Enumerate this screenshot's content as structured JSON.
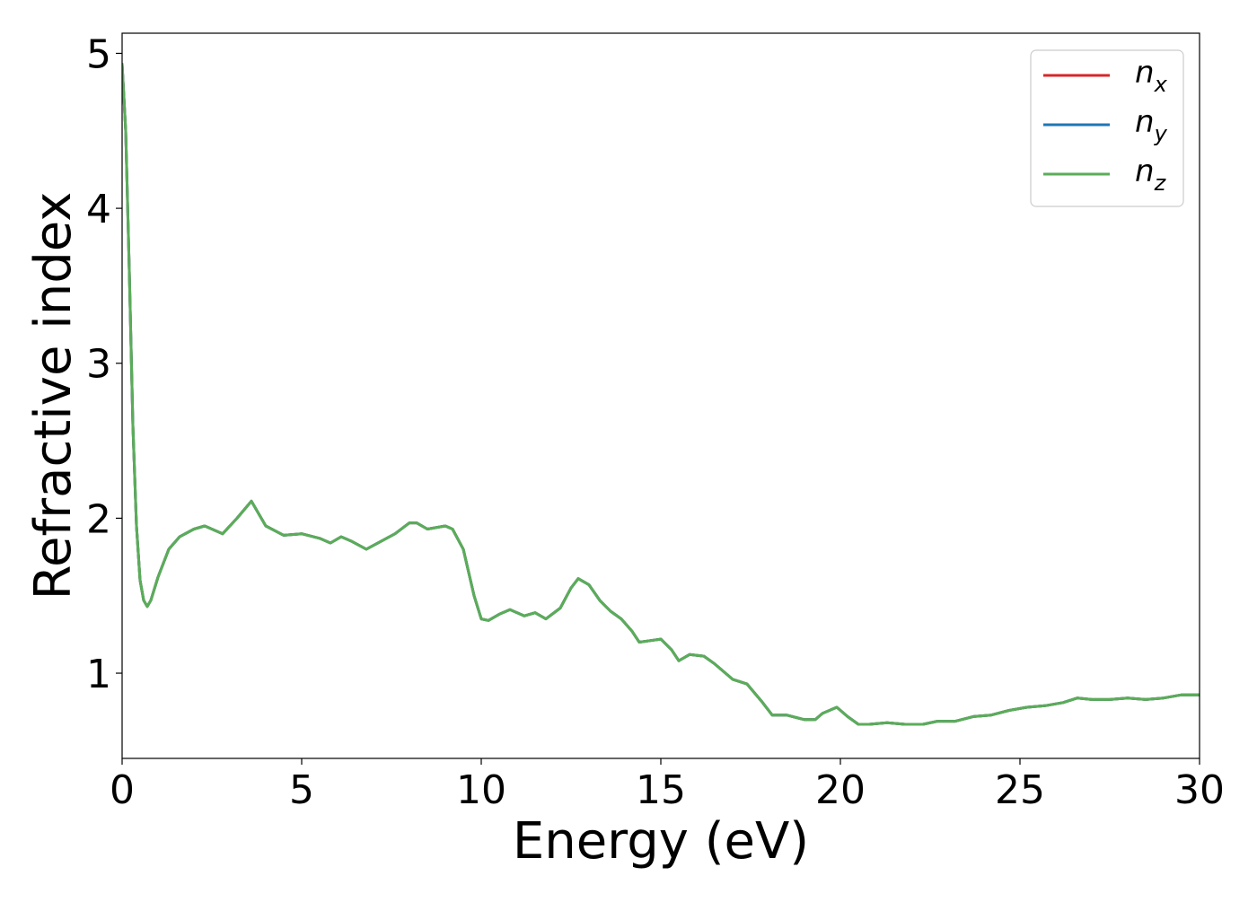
{
  "chart_data": {
    "type": "line",
    "title": "",
    "xlabel": "Energy (eV)",
    "ylabel": "Refractive index",
    "xlim": [
      0,
      30
    ],
    "ylim": [
      0.45,
      5.13
    ],
    "xticks": [
      0,
      5,
      10,
      15,
      20,
      25,
      30
    ],
    "yticks": [
      1,
      2,
      3,
      4,
      5
    ],
    "grid": false,
    "legend_position": "top-right",
    "series": [
      {
        "name": "n_x",
        "legend_main": "n",
        "legend_sub": "x",
        "color": "#d62728",
        "x": [
          0,
          0.1,
          0.2,
          0.3,
          0.4,
          0.5,
          0.6,
          0.7,
          0.8,
          1.0,
          1.3,
          1.6,
          2.0,
          2.3,
          2.6,
          2.8,
          3.2,
          3.6,
          4.0,
          4.5,
          5.0,
          5.5,
          5.8,
          6.1,
          6.4,
          6.8,
          7.2,
          7.6,
          8.0,
          8.2,
          8.5,
          9.0,
          9.2,
          9.5,
          9.8,
          10.0,
          10.2,
          10.5,
          10.8,
          11.2,
          11.5,
          11.8,
          12.2,
          12.5,
          12.7,
          13.0,
          13.3,
          13.6,
          13.9,
          14.2,
          14.4,
          14.7,
          15.0,
          15.3,
          15.5,
          15.8,
          16.2,
          16.5,
          17.0,
          17.4,
          17.8,
          18.1,
          18.5,
          19.0,
          19.3,
          19.5,
          19.9,
          20.2,
          20.5,
          20.8,
          21.3,
          21.8,
          22.3,
          22.7,
          23.2,
          23.7,
          24.2,
          24.7,
          25.2,
          25.7,
          26.2,
          26.6,
          27.0,
          27.5,
          28.0,
          28.5,
          29.0,
          29.5,
          30.0
        ],
        "y": [
          4.93,
          4.5,
          3.6,
          2.6,
          1.95,
          1.6,
          1.47,
          1.43,
          1.47,
          1.62,
          1.8,
          1.88,
          1.93,
          1.95,
          1.92,
          1.9,
          2.0,
          2.11,
          1.95,
          1.89,
          1.9,
          1.87,
          1.84,
          1.88,
          1.85,
          1.8,
          1.85,
          1.9,
          1.97,
          1.97,
          1.93,
          1.95,
          1.93,
          1.8,
          1.5,
          1.35,
          1.34,
          1.38,
          1.41,
          1.37,
          1.39,
          1.35,
          1.42,
          1.55,
          1.61,
          1.57,
          1.47,
          1.4,
          1.35,
          1.27,
          1.2,
          1.21,
          1.22,
          1.15,
          1.08,
          1.12,
          1.11,
          1.06,
          0.96,
          0.93,
          0.82,
          0.73,
          0.73,
          0.7,
          0.7,
          0.74,
          0.78,
          0.72,
          0.67,
          0.67,
          0.68,
          0.67,
          0.67,
          0.69,
          0.69,
          0.72,
          0.73,
          0.76,
          0.78,
          0.79,
          0.81,
          0.84,
          0.83,
          0.83,
          0.84,
          0.83,
          0.84,
          0.86,
          0.86
        ]
      },
      {
        "name": "n_y",
        "legend_main": "n",
        "legend_sub": "y",
        "color": "#1f77b4",
        "x": [
          0,
          0.1,
          0.2,
          0.3,
          0.4,
          0.5,
          0.6,
          0.7,
          0.8,
          1.0,
          1.3,
          1.6,
          2.0,
          2.3,
          2.6,
          2.8,
          3.2,
          3.6,
          4.0,
          4.5,
          5.0,
          5.5,
          5.8,
          6.1,
          6.4,
          6.8,
          7.2,
          7.6,
          8.0,
          8.2,
          8.5,
          9.0,
          9.2,
          9.5,
          9.8,
          10.0,
          10.2,
          10.5,
          10.8,
          11.2,
          11.5,
          11.8,
          12.2,
          12.5,
          12.7,
          13.0,
          13.3,
          13.6,
          13.9,
          14.2,
          14.4,
          14.7,
          15.0,
          15.3,
          15.5,
          15.8,
          16.2,
          16.5,
          17.0,
          17.4,
          17.8,
          18.1,
          18.5,
          19.0,
          19.3,
          19.5,
          19.9,
          20.2,
          20.5,
          20.8,
          21.3,
          21.8,
          22.3,
          22.7,
          23.2,
          23.7,
          24.2,
          24.7,
          25.2,
          25.7,
          26.2,
          26.6,
          27.0,
          27.5,
          28.0,
          28.5,
          29.0,
          29.5,
          30.0
        ],
        "y": [
          4.93,
          4.5,
          3.6,
          2.6,
          1.95,
          1.6,
          1.47,
          1.43,
          1.47,
          1.62,
          1.8,
          1.88,
          1.93,
          1.95,
          1.92,
          1.9,
          2.0,
          2.11,
          1.95,
          1.89,
          1.9,
          1.87,
          1.84,
          1.88,
          1.85,
          1.8,
          1.85,
          1.9,
          1.97,
          1.97,
          1.93,
          1.95,
          1.93,
          1.8,
          1.5,
          1.35,
          1.34,
          1.38,
          1.41,
          1.37,
          1.39,
          1.35,
          1.42,
          1.55,
          1.61,
          1.57,
          1.47,
          1.4,
          1.35,
          1.27,
          1.2,
          1.21,
          1.22,
          1.15,
          1.08,
          1.12,
          1.11,
          1.06,
          0.96,
          0.93,
          0.82,
          0.73,
          0.73,
          0.7,
          0.7,
          0.74,
          0.78,
          0.72,
          0.67,
          0.67,
          0.68,
          0.67,
          0.67,
          0.69,
          0.69,
          0.72,
          0.73,
          0.76,
          0.78,
          0.79,
          0.81,
          0.84,
          0.83,
          0.83,
          0.84,
          0.83,
          0.84,
          0.86,
          0.86
        ]
      },
      {
        "name": "n_z",
        "legend_main": "n",
        "legend_sub": "z",
        "color": "#5aad58",
        "x": [
          0,
          0.1,
          0.2,
          0.3,
          0.4,
          0.5,
          0.6,
          0.7,
          0.8,
          1.0,
          1.3,
          1.6,
          2.0,
          2.3,
          2.6,
          2.8,
          3.2,
          3.6,
          4.0,
          4.5,
          5.0,
          5.5,
          5.8,
          6.1,
          6.4,
          6.8,
          7.2,
          7.6,
          8.0,
          8.2,
          8.5,
          9.0,
          9.2,
          9.5,
          9.8,
          10.0,
          10.2,
          10.5,
          10.8,
          11.2,
          11.5,
          11.8,
          12.2,
          12.5,
          12.7,
          13.0,
          13.3,
          13.6,
          13.9,
          14.2,
          14.4,
          14.7,
          15.0,
          15.3,
          15.5,
          15.8,
          16.2,
          16.5,
          17.0,
          17.4,
          17.8,
          18.1,
          18.5,
          19.0,
          19.3,
          19.5,
          19.9,
          20.2,
          20.5,
          20.8,
          21.3,
          21.8,
          22.3,
          22.7,
          23.2,
          23.7,
          24.2,
          24.7,
          25.2,
          25.7,
          26.2,
          26.6,
          27.0,
          27.5,
          28.0,
          28.5,
          29.0,
          29.5,
          30.0
        ],
        "y": [
          4.93,
          4.5,
          3.6,
          2.6,
          1.95,
          1.6,
          1.47,
          1.43,
          1.47,
          1.62,
          1.8,
          1.88,
          1.93,
          1.95,
          1.92,
          1.9,
          2.0,
          2.11,
          1.95,
          1.89,
          1.9,
          1.87,
          1.84,
          1.88,
          1.85,
          1.8,
          1.85,
          1.9,
          1.97,
          1.97,
          1.93,
          1.95,
          1.93,
          1.8,
          1.5,
          1.35,
          1.34,
          1.38,
          1.41,
          1.37,
          1.39,
          1.35,
          1.42,
          1.55,
          1.61,
          1.57,
          1.47,
          1.4,
          1.35,
          1.27,
          1.2,
          1.21,
          1.22,
          1.15,
          1.08,
          1.12,
          1.11,
          1.06,
          0.96,
          0.93,
          0.82,
          0.73,
          0.73,
          0.7,
          0.7,
          0.74,
          0.78,
          0.72,
          0.67,
          0.67,
          0.68,
          0.67,
          0.67,
          0.69,
          0.69,
          0.72,
          0.73,
          0.76,
          0.78,
          0.79,
          0.81,
          0.84,
          0.83,
          0.83,
          0.84,
          0.83,
          0.84,
          0.86,
          0.86
        ]
      }
    ]
  }
}
